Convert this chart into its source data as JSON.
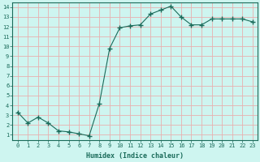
{
  "x": [
    0,
    1,
    2,
    3,
    4,
    5,
    6,
    7,
    8,
    9,
    10,
    11,
    12,
    13,
    14,
    15,
    16,
    17,
    18,
    19,
    20,
    21,
    22,
    23
  ],
  "y": [
    3.3,
    2.2,
    2.8,
    2.2,
    1.4,
    1.3,
    1.1,
    0.9,
    4.2,
    9.8,
    11.9,
    12.1,
    12.2,
    13.3,
    13.7,
    14.1,
    13.0,
    12.2,
    12.2,
    12.8,
    12.8,
    12.8,
    12.8,
    12.5
  ],
  "line_color": "#1a6b5a",
  "marker": "+",
  "marker_size": 4,
  "bg_color": "#cef5f0",
  "grid_color": "#e8b0b0",
  "xlabel": "Humidex (Indice chaleur)",
  "ylabel": "",
  "title": "",
  "xlim": [
    -0.5,
    23.5
  ],
  "ylim": [
    0.5,
    14.5
  ],
  "yticks": [
    1,
    2,
    3,
    4,
    5,
    6,
    7,
    8,
    9,
    10,
    11,
    12,
    13,
    14
  ],
  "xticks": [
    0,
    1,
    2,
    3,
    4,
    5,
    6,
    7,
    8,
    9,
    10,
    11,
    12,
    13,
    14,
    15,
    16,
    17,
    18,
    19,
    20,
    21,
    22,
    23
  ],
  "xtick_labels": [
    "0",
    "1",
    "2",
    "3",
    "4",
    "5",
    "6",
    "7",
    "8",
    "9",
    "10",
    "11",
    "12",
    "13",
    "14",
    "15",
    "16",
    "17",
    "18",
    "19",
    "20",
    "21",
    "22",
    "23"
  ],
  "font_color": "#1a6b5a",
  "tick_color": "#1a6b5a",
  "spine_color": "#1a6b5a",
  "xlabel_fontsize": 6.0,
  "tick_fontsize": 5.0
}
